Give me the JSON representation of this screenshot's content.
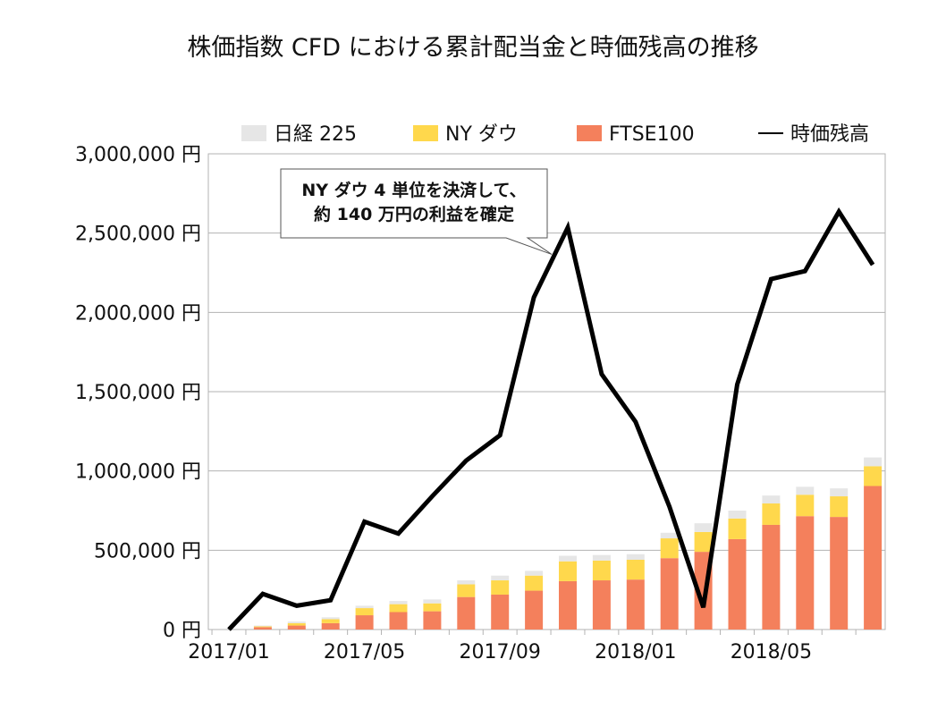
{
  "chart_data": {
    "type": "bar",
    "title": "株価指数 CFD における累計配当金と時価残高の推移",
    "xlabel": "",
    "ylabel": "",
    "ylim": [
      0,
      3000000
    ],
    "y_unit": "円",
    "yticks": [
      "0 円",
      "500,000 円",
      "1,000,000 円",
      "1,500,000 円",
      "2,000,000 円",
      "2,500,000 円",
      "3,000,000 円"
    ],
    "categories": [
      "2017/01",
      "2017/02",
      "2017/03",
      "2017/04",
      "2017/05",
      "2017/06",
      "2017/07",
      "2017/08",
      "2017/09",
      "2017/10",
      "2017/11",
      "2017/12",
      "2018/01",
      "2018/02",
      "2018/03",
      "2018/04",
      "2018/05",
      "2018/06",
      "2018/07",
      "2018/08"
    ],
    "xtick_labels": [
      "2017/01",
      "2017/05",
      "2017/09",
      "2018/01",
      "2018/05"
    ],
    "xtick_indices": [
      0,
      4,
      8,
      12,
      16
    ],
    "stacked": true,
    "series": [
      {
        "name": "FTSE100",
        "kind": "bar",
        "color": "#f4805c",
        "values": [
          0,
          15000,
          25000,
          40000,
          90000,
          110000,
          115000,
          205000,
          220000,
          245000,
          305000,
          310000,
          315000,
          450000,
          490000,
          570000,
          660000,
          715000,
          710000,
          905000
        ]
      },
      {
        "name": "NY ダウ",
        "kind": "bar",
        "color": "#ffd84c",
        "values": [
          0,
          5000,
          15000,
          25000,
          45000,
          50000,
          50000,
          80000,
          90000,
          95000,
          125000,
          125000,
          125000,
          125000,
          125000,
          130000,
          135000,
          135000,
          130000,
          125000
        ]
      },
      {
        "name": "日経 225",
        "kind": "bar",
        "color": "#e6e6e6",
        "values": [
          0,
          5000,
          10000,
          12000,
          15000,
          20000,
          25000,
          25000,
          30000,
          30000,
          35000,
          35000,
          35000,
          35000,
          55000,
          50000,
          50000,
          50000,
          50000,
          55000
        ]
      },
      {
        "name": "時価残高",
        "kind": "line",
        "color": "#000000",
        "values": [
          0,
          225000,
          150000,
          185000,
          680000,
          605000,
          840000,
          1065000,
          1225000,
          2095000,
          2535000,
          1610000,
          1310000,
          775000,
          140000,
          1545000,
          2210000,
          2260000,
          2635000,
          2300000
        ]
      }
    ],
    "legend_order": [
      "日経 225",
      "NY ダウ",
      "FTSE100",
      "時価残高"
    ],
    "legend_position": "top",
    "grid": true,
    "annotation": {
      "lines": [
        "NY ダウ 4 単位を決済して、",
        "約 140 万円の利益を確定"
      ],
      "target_index": 10
    }
  }
}
